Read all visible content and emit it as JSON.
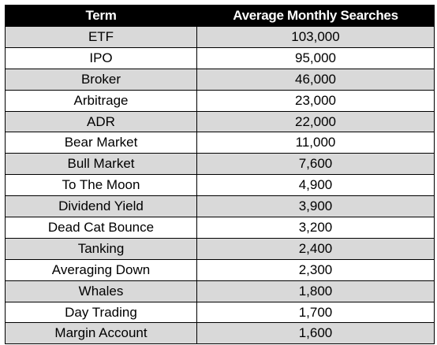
{
  "table": {
    "headers": [
      "Term",
      "Average Monthly Searches"
    ],
    "rows": [
      [
        "ETF",
        "103,000"
      ],
      [
        "IPO",
        "95,000"
      ],
      [
        "Broker",
        "46,000"
      ],
      [
        "Arbitrage",
        "23,000"
      ],
      [
        "ADR",
        "22,000"
      ],
      [
        "Bear Market",
        "11,000"
      ],
      [
        "Bull Market",
        "7,600"
      ],
      [
        "To The Moon",
        "4,900"
      ],
      [
        "Dividend Yield",
        "3,900"
      ],
      [
        "Dead Cat Bounce",
        "3,200"
      ],
      [
        "Tanking",
        "2,400"
      ],
      [
        "Averaging Down",
        "2,300"
      ],
      [
        "Whales",
        "1,800"
      ],
      [
        "Day Trading",
        "1,700"
      ],
      [
        "Margin Account",
        "1,600"
      ]
    ]
  },
  "colors": {
    "header_bg": "#000000",
    "header_text": "#ffffff",
    "row_shade": "#d9d9d9",
    "row_plain": "#ffffff"
  }
}
